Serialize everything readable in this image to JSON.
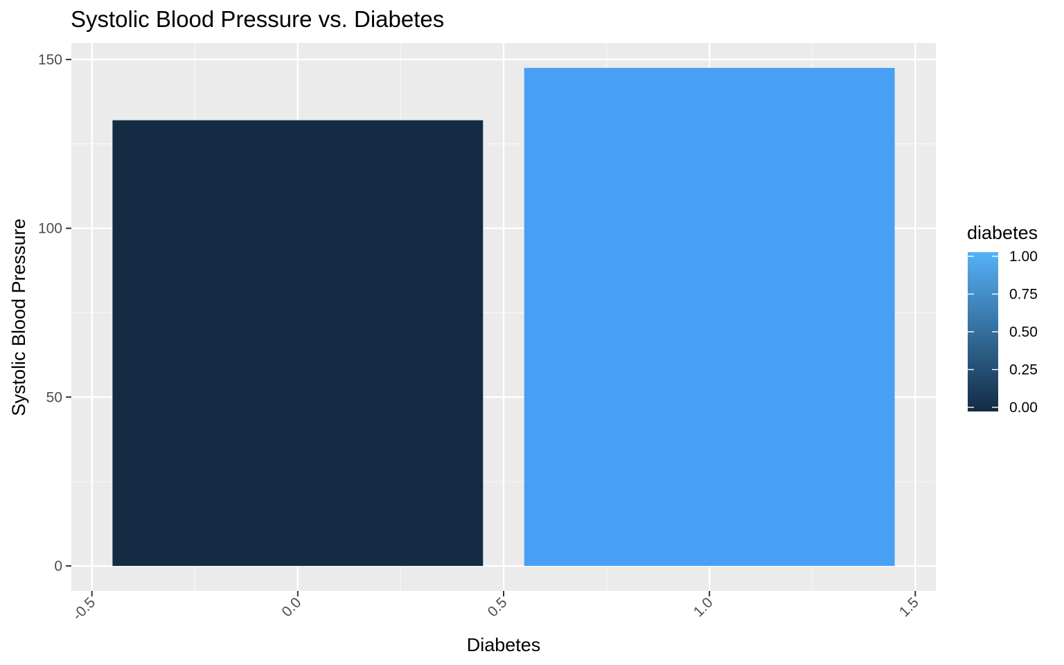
{
  "chart_data": {
    "type": "bar",
    "title": "Systolic Blood Pressure vs. Diabetes",
    "xlabel": "Diabetes",
    "ylabel": "Systolic Blood Pressure",
    "x": [
      0,
      1
    ],
    "values": [
      132,
      147.5
    ],
    "fill_values": [
      0,
      1
    ],
    "bar_width": 0.9,
    "xlim": [
      -0.55,
      1.55
    ],
    "ylim": [
      -7.4,
      154.9
    ],
    "x_ticks": [
      -0.5,
      0.0,
      0.5,
      1.0,
      1.5
    ],
    "x_tick_labels": [
      "-0.5",
      "0.0",
      "0.5",
      "1.0",
      "1.5"
    ],
    "y_ticks": [
      0,
      50,
      100,
      150
    ],
    "y_tick_labels": [
      "0",
      "50",
      "100",
      "150"
    ],
    "grid": true,
    "legend": {
      "title": "diabetes",
      "placement": "right",
      "type": "colorbar",
      "ticks": [
        0,
        0.25,
        0.5,
        0.75,
        1.0
      ],
      "tick_labels": [
        "0.00",
        "0.25",
        "0.50",
        "0.75",
        "1.00"
      ],
      "low_color": "#132B43",
      "high_color": "#56B1F7"
    }
  },
  "colors": {
    "panel_background": "#ebebeb",
    "grid_major": "#ffffff",
    "grid_minor": "#f7f7f7",
    "tick_label": "#4d4d4d",
    "bar_low": "#132B43",
    "bar_high": "#489FF5"
  }
}
